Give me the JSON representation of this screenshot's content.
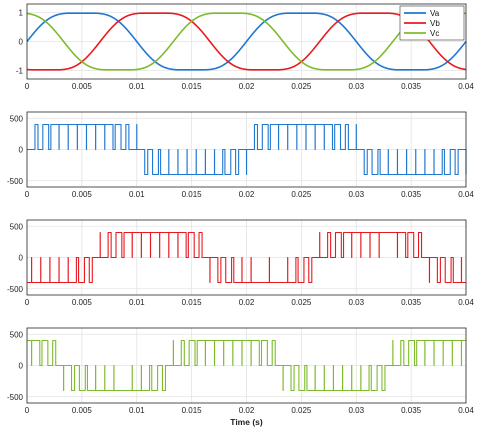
{
  "chart_data": [
    {
      "type": "line",
      "xlim": [
        0,
        0.04
      ],
      "ylim": [
        -1.3,
        1.3
      ],
      "xticks": [
        "0",
        "0.005",
        "0.01",
        "0.015",
        "0.02",
        "0.025",
        "0.03",
        "0.035",
        "0.04"
      ],
      "yticks": [
        "1",
        "0",
        "-1"
      ],
      "xlabel": "",
      "grid": true,
      "legend_position": "top-right",
      "series": [
        {
          "name": "Va",
          "color": "#1f77d0",
          "kind": "flat-top-sine",
          "frequency_hz": 50,
          "phase_deg": 0,
          "amplitude": 1
        },
        {
          "name": "Vb",
          "color": "#e8191f",
          "kind": "flat-top-sine",
          "frequency_hz": 50,
          "phase_deg": 120,
          "amplitude": 1
        },
        {
          "name": "Vc",
          "color": "#7dbb2a",
          "kind": "flat-top-sine",
          "frequency_hz": 50,
          "phase_deg": 240,
          "amplitude": 1
        }
      ]
    },
    {
      "type": "line",
      "xlim": [
        0,
        0.04
      ],
      "ylim": [
        -600,
        600
      ],
      "xticks": [
        "0",
        "0.005",
        "0.01",
        "0.015",
        "0.02",
        "0.025",
        "0.03",
        "0.035",
        "0.04"
      ],
      "yticks": [
        "500",
        "0",
        "-500"
      ],
      "xlabel": "",
      "grid": true,
      "series": [
        {
          "color": "#1f77d0",
          "kind": "pwm-three-level",
          "levels": [
            -400,
            0,
            400
          ],
          "frequency_hz": 50,
          "phase_deg": 0,
          "pulses_per_half_cycle": 12
        }
      ]
    },
    {
      "type": "line",
      "xlim": [
        0,
        0.04
      ],
      "ylim": [
        -600,
        600
      ],
      "xticks": [
        "0",
        "0.005",
        "0.01",
        "0.015",
        "0.02",
        "0.025",
        "0.03",
        "0.035",
        "0.04"
      ],
      "yticks": [
        "500",
        "0",
        "-500"
      ],
      "xlabel": "",
      "grid": true,
      "series": [
        {
          "color": "#e8191f",
          "kind": "pwm-three-level",
          "levels": [
            -400,
            0,
            400
          ],
          "frequency_hz": 50,
          "phase_deg": 120,
          "pulses_per_half_cycle": 12
        }
      ]
    },
    {
      "type": "line",
      "xlim": [
        0,
        0.04
      ],
      "ylim": [
        -600,
        600
      ],
      "xticks": [
        "0",
        "0.005",
        "0.01",
        "0.015",
        "0.02",
        "0.025",
        "0.03",
        "0.035",
        "0.04"
      ],
      "yticks": [
        "500",
        "0",
        "-500"
      ],
      "xlabel": "Time (s)",
      "grid": true,
      "series": [
        {
          "color": "#7dbb2a",
          "kind": "pwm-three-level",
          "levels": [
            -400,
            0,
            400
          ],
          "frequency_hz": 50,
          "phase_deg": 240,
          "pulses_per_half_cycle": 12
        }
      ]
    }
  ]
}
